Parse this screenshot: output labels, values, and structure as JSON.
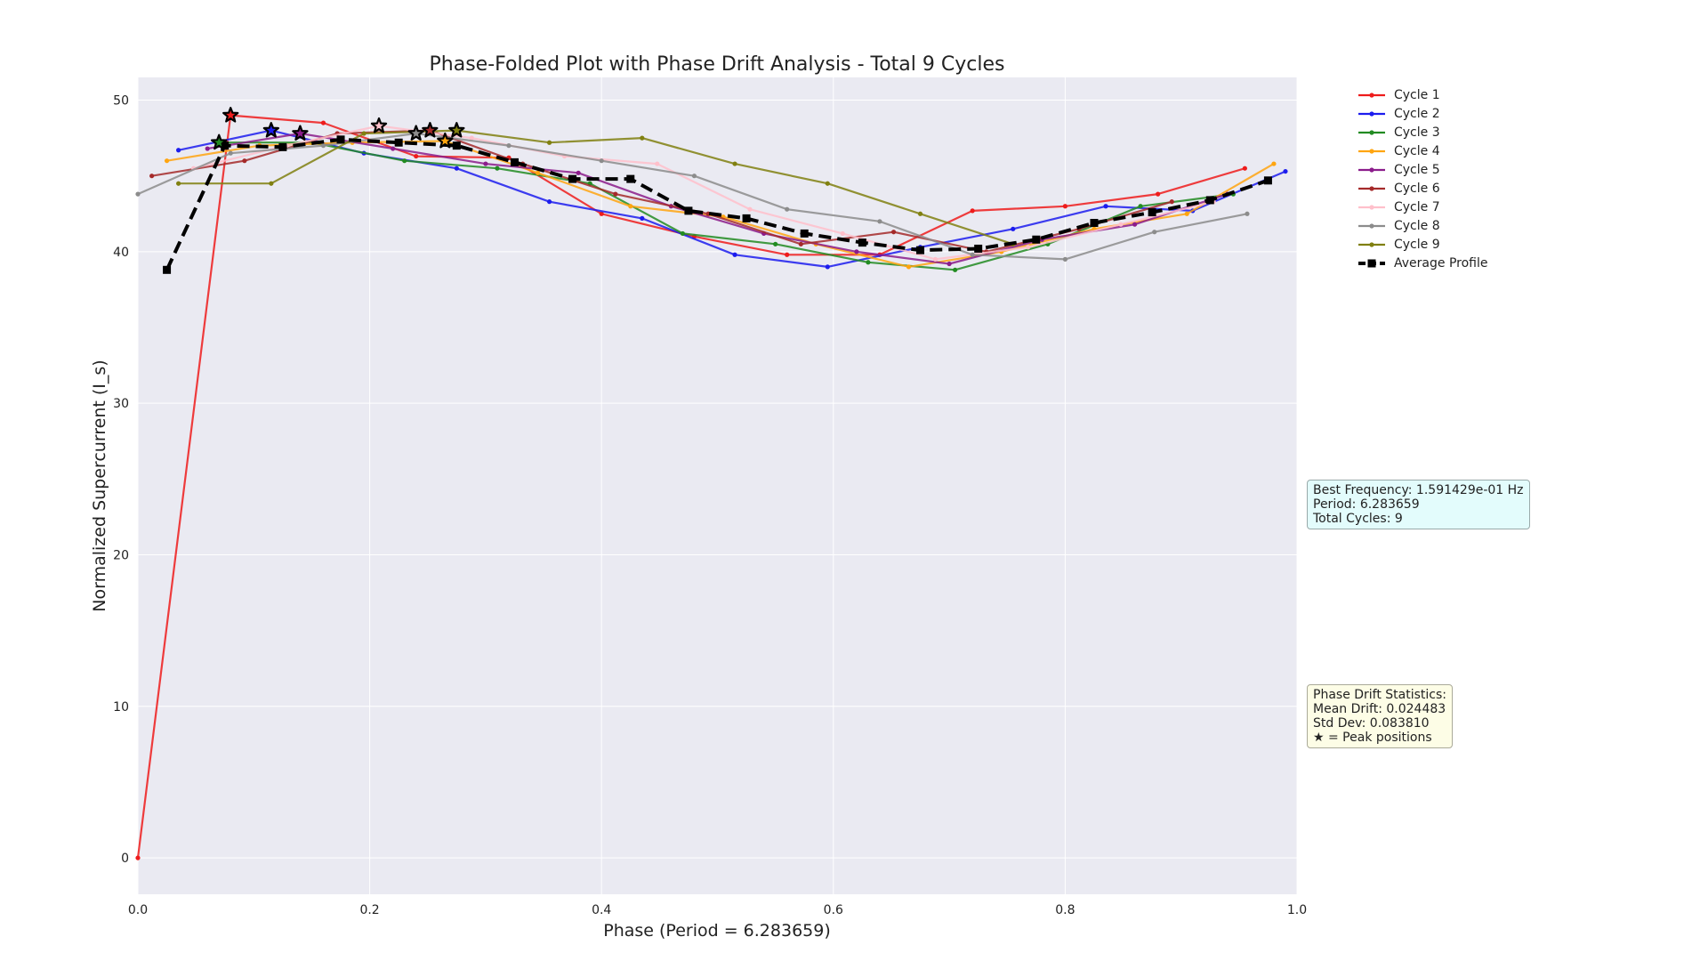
{
  "chart_data": {
    "type": "line",
    "title": "Phase-Folded Plot with Phase Drift Analysis - Total 9 Cycles",
    "xlabel": "Phase (Period = 6.283659)",
    "ylabel": "Normalized Supercurrent (I_s)",
    "xlim": [
      0.0,
      1.0
    ],
    "ylim": [
      -2.4,
      51.5
    ],
    "xticks": [
      "0.0",
      "0.2",
      "0.4",
      "0.6",
      "0.8",
      "1.0"
    ],
    "yticks": [
      "0",
      "10",
      "20",
      "30",
      "40",
      "50"
    ],
    "grid": true,
    "legend_placement": "outside-top-right",
    "series": [
      {
        "name": "Cycle 1",
        "color": "#ee1c1c",
        "marker": "circle",
        "x": [
          0.0,
          0.08,
          0.16,
          0.24,
          0.32,
          0.4,
          0.48,
          0.56,
          0.64,
          0.72,
          0.8,
          0.88,
          0.955
        ],
        "y": [
          0.0,
          49.0,
          48.5,
          46.3,
          46.2,
          42.5,
          41.0,
          39.8,
          39.8,
          42.7,
          43.0,
          43.8,
          45.5
        ],
        "peak": {
          "x": 0.08,
          "y": 49.0
        }
      },
      {
        "name": "Cycle 2",
        "color": "#1c1cee",
        "marker": "circle",
        "x": [
          0.035,
          0.115,
          0.195,
          0.275,
          0.355,
          0.435,
          0.515,
          0.595,
          0.675,
          0.755,
          0.835,
          0.91,
          0.99
        ],
        "y": [
          46.7,
          48.0,
          46.5,
          45.5,
          43.3,
          42.2,
          39.8,
          39.0,
          40.3,
          41.5,
          43.0,
          42.7,
          45.3
        ],
        "peak": {
          "x": 0.115,
          "y": 48.0
        }
      },
      {
        "name": "Cycle 3",
        "color": "#228b22",
        "marker": "circle",
        "x": [
          0.07,
          0.15,
          0.23,
          0.31,
          0.39,
          0.47,
          0.55,
          0.63,
          0.705,
          0.785,
          0.865,
          0.945
        ],
        "y": [
          47.2,
          47.2,
          46.0,
          45.5,
          44.5,
          41.2,
          40.5,
          39.3,
          38.8,
          40.5,
          43.0,
          43.8
        ],
        "peak": {
          "x": 0.07,
          "y": 47.2
        }
      },
      {
        "name": "Cycle 4",
        "color": "#ffa510",
        "marker": "circle",
        "x": [
          0.025,
          0.105,
          0.185,
          0.265,
          0.345,
          0.425,
          0.505,
          0.585,
          0.665,
          0.745,
          0.825,
          0.905,
          0.98
        ],
        "y": [
          46.0,
          47.0,
          47.2,
          47.3,
          45.2,
          43.0,
          42.3,
          40.5,
          39.0,
          40.0,
          41.5,
          42.5,
          45.8
        ],
        "peak": {
          "x": 0.265,
          "y": 47.3
        }
      },
      {
        "name": "Cycle 5",
        "color": "#8b1c8b",
        "marker": "circle",
        "x": [
          0.06,
          0.14,
          0.22,
          0.3,
          0.38,
          0.46,
          0.54,
          0.62,
          0.7,
          0.78,
          0.86,
          0.94
        ],
        "y": [
          46.8,
          47.8,
          46.8,
          45.8,
          45.2,
          43.0,
          41.2,
          40.0,
          39.2,
          40.8,
          41.8,
          43.8
        ],
        "peak": {
          "x": 0.14,
          "y": 47.8
        }
      },
      {
        "name": "Cycle 6",
        "color": "#a52a2a",
        "marker": "circle",
        "x": [
          0.012,
          0.092,
          0.172,
          0.252,
          0.332,
          0.412,
          0.492,
          0.572,
          0.652,
          0.732,
          0.812,
          0.892
        ],
        "y": [
          45.0,
          46.0,
          47.8,
          48.0,
          45.8,
          43.8,
          42.5,
          40.5,
          41.3,
          40.0,
          41.5,
          43.3
        ],
        "peak": {
          "x": 0.252,
          "y": 48.0
        }
      },
      {
        "name": "Cycle 7",
        "color": "#ffc0cb",
        "marker": "circle",
        "x": [
          0.048,
          0.128,
          0.208,
          0.288,
          0.368,
          0.448,
          0.528,
          0.608,
          0.688,
          0.768,
          0.848,
          0.928
        ],
        "y": [
          45.5,
          47.0,
          48.3,
          47.5,
          46.3,
          45.8,
          42.8,
          41.2,
          39.5,
          40.3,
          41.8,
          43.3
        ],
        "peak": {
          "x": 0.208,
          "y": 48.3
        }
      },
      {
        "name": "Cycle 8",
        "color": "#8c8c8c",
        "marker": "circle",
        "x": [
          0.0,
          0.08,
          0.16,
          0.24,
          0.32,
          0.4,
          0.48,
          0.56,
          0.64,
          0.72,
          0.8,
          0.877,
          0.957
        ],
        "y": [
          43.8,
          46.5,
          47.0,
          47.8,
          47.0,
          46.0,
          45.0,
          42.8,
          42.0,
          39.8,
          39.5,
          41.3,
          42.5
        ],
        "peak": {
          "x": 0.24,
          "y": 47.8
        }
      },
      {
        "name": "Cycle 9",
        "color": "#808010",
        "marker": "circle",
        "x": [
          0.035,
          0.115,
          0.195,
          0.275,
          0.355,
          0.435,
          0.515,
          0.595,
          0.675,
          0.755
        ],
        "y": [
          44.5,
          44.5,
          47.8,
          48.0,
          47.2,
          47.5,
          45.8,
          44.5,
          42.5,
          40.5
        ],
        "peak": {
          "x": 0.275,
          "y": 48.0
        }
      },
      {
        "name": "Average Profile",
        "color": "#000000",
        "marker": "square",
        "dashed": true,
        "x": [
          0.025,
          0.075,
          0.125,
          0.175,
          0.225,
          0.275,
          0.325,
          0.375,
          0.425,
          0.475,
          0.525,
          0.575,
          0.625,
          0.675,
          0.725,
          0.775,
          0.825,
          0.875,
          0.925,
          0.975
        ],
        "y": [
          38.8,
          47.0,
          46.9,
          47.4,
          47.2,
          47.0,
          45.9,
          44.8,
          44.8,
          42.7,
          42.2,
          41.2,
          40.6,
          40.1,
          40.2,
          40.8,
          41.9,
          42.6,
          43.4,
          44.7
        ]
      }
    ],
    "annotations": [
      [
        "Best Frequency: 1.591429e-01 Hz",
        "Period: 6.283659",
        "Total Cycles: 9"
      ],
      [
        "Phase Drift Statistics:",
        "Mean Drift: 0.024483",
        "Std Dev: 0.083810",
        "★ = Peak positions"
      ]
    ]
  }
}
